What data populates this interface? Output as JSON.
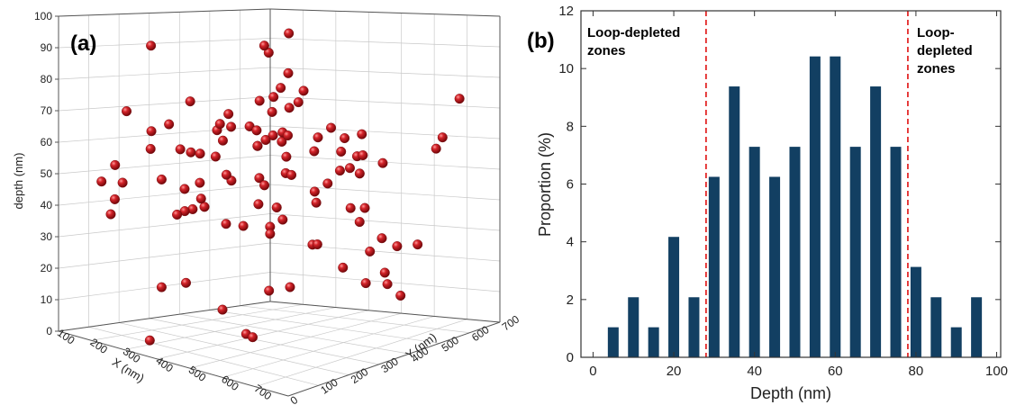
{
  "chart_data": [
    {
      "type": "scatter",
      "panel_label": "(a)",
      "zlabel": "depth (nm)",
      "xlabel": "X (nm)",
      "ylabel": "Y (nm)",
      "z_ticks": [
        "0",
        "10",
        "20",
        "30",
        "40",
        "50",
        "60",
        "70",
        "80",
        "90",
        "100"
      ],
      "x_ticks": [
        "100",
        "200",
        "300",
        "400",
        "500",
        "600",
        "700"
      ],
      "y_ticks": [
        "0",
        "100",
        "200",
        "300",
        "400",
        "500",
        "600",
        "700"
      ],
      "zlim": [
        0,
        100
      ],
      "xlim": [
        100,
        700
      ],
      "ylim": [
        0,
        700
      ],
      "marker_color": "#c0141a",
      "points_depth_nm": [
        97,
        92,
        91,
        85,
        83,
        79,
        77,
        76,
        76,
        75,
        74,
        73,
        72,
        72,
        71,
        71,
        70,
        70,
        70,
        69,
        69,
        68,
        68,
        67,
        66,
        66,
        65,
        65,
        64,
        64,
        63,
        63,
        62,
        62,
        61,
        61,
        60,
        60,
        59,
        59,
        58,
        58,
        57,
        57,
        56,
        56,
        55,
        55,
        54,
        54,
        54,
        53,
        53,
        52,
        52,
        51,
        51,
        50,
        50,
        49,
        48,
        48,
        47,
        47,
        46,
        46,
        45,
        45,
        44,
        44,
        43,
        42,
        42,
        41,
        40,
        39,
        38,
        38,
        37,
        36,
        35,
        33,
        32,
        31,
        30,
        29,
        27,
        26,
        25,
        24,
        23,
        22,
        20,
        19,
        16,
        14,
        12,
        10,
        9,
        8,
        5,
        3
      ]
    },
    {
      "type": "bar",
      "panel_label": "(b)",
      "xlabel": "Depth (nm)",
      "ylabel": "Proportion (%)",
      "xlim": [
        -3,
        101
      ],
      "ylim": [
        0,
        12
      ],
      "x_ticks": [
        "0",
        "20",
        "40",
        "60",
        "80",
        "100"
      ],
      "y_ticks": [
        "0",
        "2",
        "4",
        "6",
        "8",
        "10",
        "12"
      ],
      "x": [
        5,
        10,
        15,
        20,
        25,
        30,
        35,
        40,
        45,
        50,
        55,
        60,
        65,
        70,
        75,
        80,
        85,
        90,
        95
      ],
      "values": [
        1.04,
        2.08,
        1.04,
        4.17,
        2.08,
        6.25,
        9.38,
        7.29,
        6.25,
        7.29,
        10.42,
        10.42,
        7.29,
        9.38,
        7.29,
        3.13,
        2.08,
        1.04,
        2.08
      ],
      "bar_color": "#123f62",
      "reference_lines": [
        28,
        78
      ],
      "reference_line_color": "#e01010",
      "annotations": [
        {
          "lines": [
            "Loop-depleted",
            "zones"
          ]
        },
        {
          "lines": [
            "Loop-",
            "depleted",
            "zones"
          ]
        }
      ]
    }
  ]
}
